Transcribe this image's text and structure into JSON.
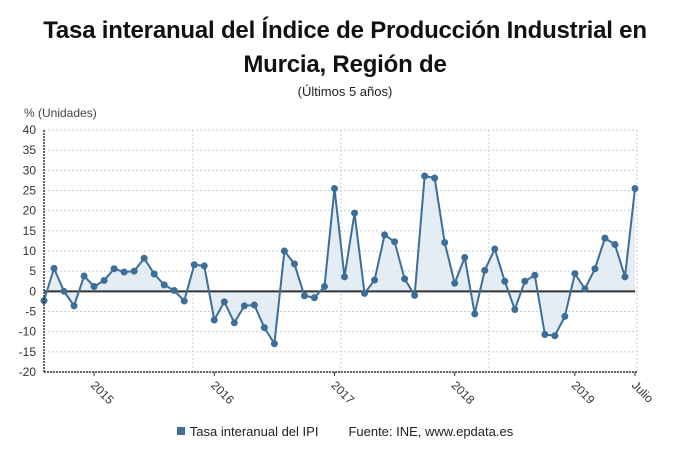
{
  "title_line1": "Tasa interanual del Índice de Producción Industrial en",
  "title_line2": "Murcia, Región de",
  "subtitle": "(Últimos 5 años)",
  "y_axis_label": "% (Unidades)",
  "legend": {
    "series_label": "Tasa interanual del IPI",
    "source": "Fuente: INE, www.epdata.es",
    "swatch_color": "#3d6e99"
  },
  "colors": {
    "line": "#3d6e99",
    "marker": "#3d6e99",
    "fill": "#dde7f1",
    "zero_line": "#333333",
    "grid": "#cccccc"
  },
  "chart_data": {
    "type": "line",
    "title": "Tasa interanual del Índice de Producción Industrial en Murcia, Región de",
    "subtitle": "(Últimos 5 años)",
    "xlabel": "",
    "ylabel": "% (Unidades)",
    "ylim": [
      -20,
      40
    ],
    "yticks": [
      40,
      35,
      30,
      25,
      20,
      15,
      10,
      5,
      0,
      -5,
      -10,
      -15,
      -20
    ],
    "xtick_labels": [
      "2015",
      "2016",
      "2017",
      "2018",
      "2019",
      "Julio"
    ],
    "xtick_indices": [
      5,
      17,
      29,
      41,
      53,
      59
    ],
    "grid": true,
    "legend_position": "bottom",
    "area_fill": true,
    "x": [
      "2014-08",
      "2014-09",
      "2014-10",
      "2014-11",
      "2014-12",
      "2015-01",
      "2015-02",
      "2015-03",
      "2015-04",
      "2015-05",
      "2015-06",
      "2015-07",
      "2015-08",
      "2015-09",
      "2015-10",
      "2015-11",
      "2015-12",
      "2016-01",
      "2016-02",
      "2016-03",
      "2016-04",
      "2016-05",
      "2016-06",
      "2016-07",
      "2016-08",
      "2016-09",
      "2016-10",
      "2016-11",
      "2016-12",
      "2017-01",
      "2017-02",
      "2017-03",
      "2017-04",
      "2017-05",
      "2017-06",
      "2017-07",
      "2017-08",
      "2017-09",
      "2017-10",
      "2017-11",
      "2017-12",
      "2018-01",
      "2018-02",
      "2018-03",
      "2018-04",
      "2018-05",
      "2018-06",
      "2018-07",
      "2018-08",
      "2018-09",
      "2018-10",
      "2018-11",
      "2018-12",
      "2019-01",
      "2019-02",
      "2019-03",
      "2019-04",
      "2019-05",
      "2019-06",
      "2019-07"
    ],
    "series": [
      {
        "name": "Tasa interanual del IPI",
        "values": [
          -2.3,
          5.7,
          0.0,
          -3.6,
          3.8,
          1.2,
          2.7,
          5.6,
          4.8,
          5.0,
          8.2,
          4.3,
          1.6,
          0.2,
          -2.4,
          6.6,
          6.3,
          -7.1,
          -2.6,
          -7.8,
          -3.6,
          -3.4,
          -9.0,
          -13.0,
          10.0,
          6.8,
          -1.1,
          -1.6,
          1.2,
          25.5,
          3.6,
          19.4,
          -0.5,
          2.8,
          14.0,
          12.3,
          3.1,
          -1.0,
          28.6,
          28.1,
          12.1,
          2.0,
          8.4,
          -5.6,
          5.2,
          10.5,
          2.5,
          -4.5,
          2.5,
          4.0,
          -10.7,
          -11.0,
          -6.2,
          4.4,
          0.6,
          5.6,
          13.2,
          11.6,
          3.6,
          25.5
        ]
      }
    ]
  }
}
